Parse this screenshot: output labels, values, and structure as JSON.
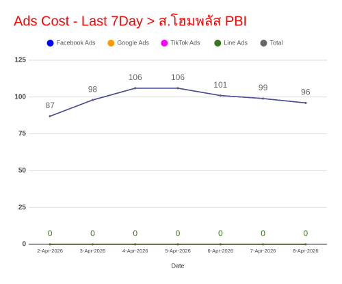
{
  "chart_data": {
    "type": "line",
    "title": "Ads Cost - Last 7Day > ส.โฮมพลัส PBI",
    "x_label": "Date",
    "categories": [
      "2-Apr-2026",
      "3-Apr-2026",
      "4-Apr-2026",
      "5-Apr-2026",
      "6-Apr-2026",
      "7-Apr-2026",
      "8-Apr-2026"
    ],
    "series": [
      {
        "name": "Facebook Ads",
        "color": "#0000ff",
        "values": [
          87,
          98,
          106,
          106,
          101,
          99,
          96
        ],
        "show_labels": false
      },
      {
        "name": "Google Ads",
        "color": "#ff9900",
        "values": [
          0,
          0,
          0,
          0,
          0,
          0,
          0
        ],
        "show_labels": false
      },
      {
        "name": "TikTok Ads",
        "color": "#ff00ff",
        "values": [
          0,
          0,
          0,
          0,
          0,
          0,
          0
        ],
        "show_labels": false
      },
      {
        "name": "Line Ads",
        "color": "#38761d",
        "values": [
          0,
          0,
          0,
          0,
          0,
          0,
          0
        ],
        "show_labels": true
      },
      {
        "name": "Total",
        "color": "#666666",
        "values": [
          87,
          98,
          106,
          106,
          101,
          99,
          96
        ],
        "show_labels": true
      }
    ],
    "ylim": [
      0,
      125
    ],
    "yticks": [
      0,
      25,
      50,
      75,
      100,
      125
    ],
    "grid": true,
    "legend": "top"
  }
}
